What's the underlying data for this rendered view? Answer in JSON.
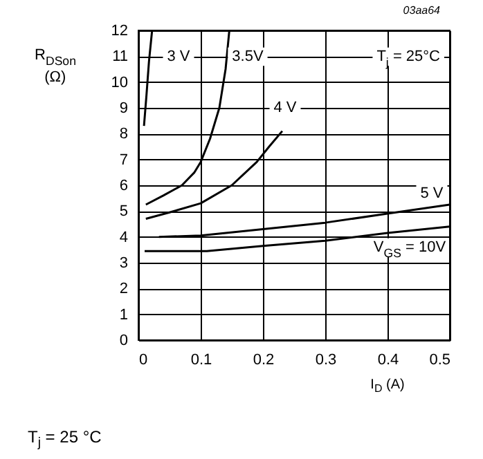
{
  "chart_data": {
    "type": "line",
    "xlabel": "I$_{D}$ (A)",
    "ylabel": "R$_{DSon}$ (Ω)",
    "xlim": [
      0,
      0.5
    ],
    "xticks": [
      {
        "value": 0,
        "label": "0"
      },
      0.1,
      0.2,
      0.3,
      0.4,
      0.5
    ],
    "ylim": [
      0,
      12
    ],
    "yticks": [
      0,
      1,
      2,
      3,
      4,
      5,
      6,
      7,
      8,
      9,
      10,
      11,
      12
    ],
    "grid": true,
    "legend": false,
    "marker": "none",
    "line_style": "solid",
    "series": [
      {
        "name": "3 V",
        "color": "#000000",
        "x": [
          0.009,
          0.013,
          0.017,
          0.022
        ],
        "values": [
          8.3,
          9.5,
          10.8,
          12
        ]
      },
      {
        "name": "3.5V",
        "color": "#000000",
        "x": [
          0.012,
          0.04,
          0.07,
          0.09,
          0.1,
          0.115,
          0.13,
          0.14,
          0.146
        ],
        "values": [
          5.25,
          5.6,
          6.0,
          6.5,
          6.9,
          7.8,
          9.0,
          10.5,
          12
        ]
      },
      {
        "name": "4 V",
        "color": "#000000",
        "x": [
          0.012,
          0.05,
          0.1,
          0.15,
          0.19,
          0.21,
          0.231
        ],
        "values": [
          4.7,
          4.95,
          5.3,
          6.0,
          6.9,
          7.5,
          8.1
        ]
      },
      {
        "name": "5 V",
        "color": "#000000",
        "x": [
          0.033,
          0.1,
          0.2,
          0.3,
          0.4,
          0.5
        ],
        "values": [
          4.0,
          4.05,
          4.3,
          4.55,
          4.9,
          5.25
        ]
      },
      {
        "name": "V$_{GS}$ = 10V",
        "color": "#000000",
        "x": [
          0.01,
          0.11,
          0.2,
          0.3,
          0.4,
          0.5
        ],
        "values": [
          3.45,
          3.45,
          3.65,
          3.85,
          4.15,
          4.4
        ]
      }
    ],
    "annotations": [
      "03aa64",
      "T$_{j}$ = 25°C",
      "T$_{j}$ = 25 °C"
    ]
  }
}
